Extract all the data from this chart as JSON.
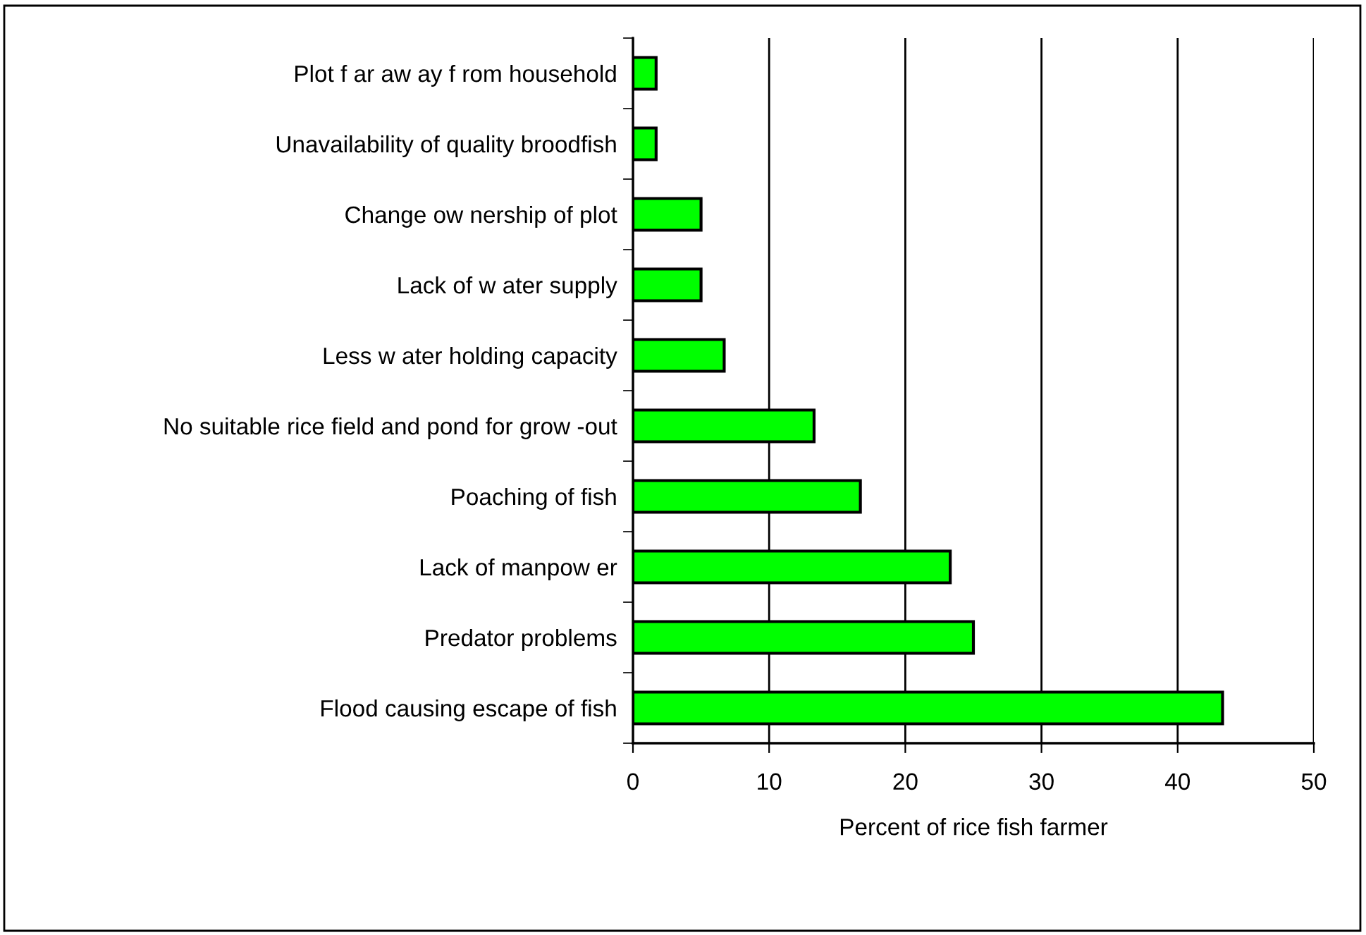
{
  "chart_data": {
    "type": "bar",
    "orientation": "horizontal",
    "categories": [
      "Plot f ar aw ay f rom household",
      "Unavailability of quality broodfish",
      "Change ow nership of plot",
      "Lack of w ater supply",
      "Less w ater holding capacity",
      "No suitable rice field and pond for grow -out",
      "Poaching of fish",
      "Lack of manpow er",
      "Predator problems",
      "Flood causing escape of fish"
    ],
    "values": [
      1.7,
      1.7,
      5,
      5,
      6.7,
      13.3,
      16.7,
      23.3,
      25,
      43.3
    ],
    "color": "#00ff00",
    "xlabel": "Percent of rice fish farmer",
    "xlim": [
      0,
      50
    ],
    "xticks": [
      0,
      10,
      20,
      30,
      40,
      50
    ],
    "grid": "x",
    "legend": false
  }
}
